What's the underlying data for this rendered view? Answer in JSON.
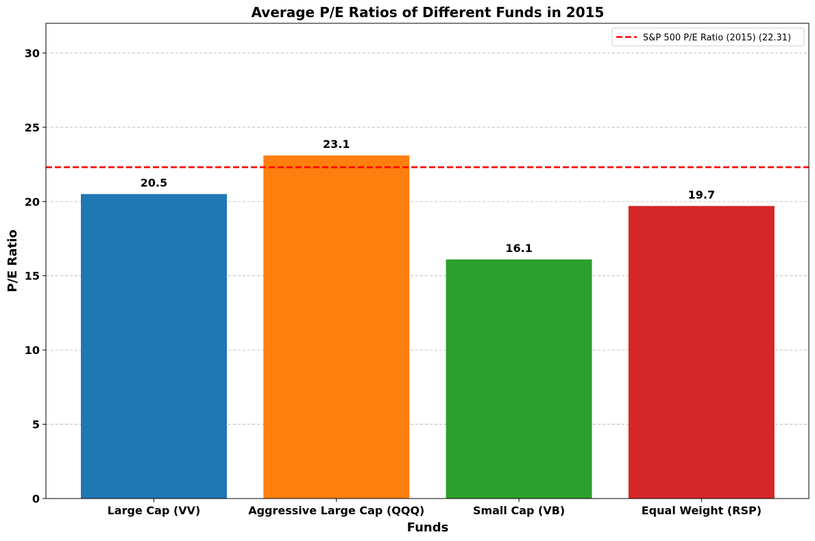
{
  "chart_data": {
    "type": "bar",
    "title": "Average P/E Ratios of Different Funds in 2015",
    "xlabel": "Funds",
    "ylabel": "P/E Ratio",
    "categories": [
      "Large Cap (VV)",
      "Aggressive Large Cap (QQQ)",
      "Small Cap (VB)",
      "Equal Weight (RSP)"
    ],
    "values": [
      20.5,
      23.1,
      16.1,
      19.7
    ],
    "data_labels": [
      "20.5",
      "23.1",
      "16.1",
      "19.7"
    ],
    "colors": [
      "#1f77b4",
      "#ff7f0e",
      "#2ca02c",
      "#d62728"
    ],
    "ylim": [
      0,
      32
    ],
    "yticks": [
      0,
      5,
      10,
      15,
      20,
      25,
      30
    ],
    "grid": "y-dashed",
    "reference_line": {
      "value": 22.31,
      "label": "S&P 500 P/E Ratio (2015) (22.31)",
      "color": "#ff0000",
      "style": "dashed"
    },
    "legend_position": "top-right"
  }
}
